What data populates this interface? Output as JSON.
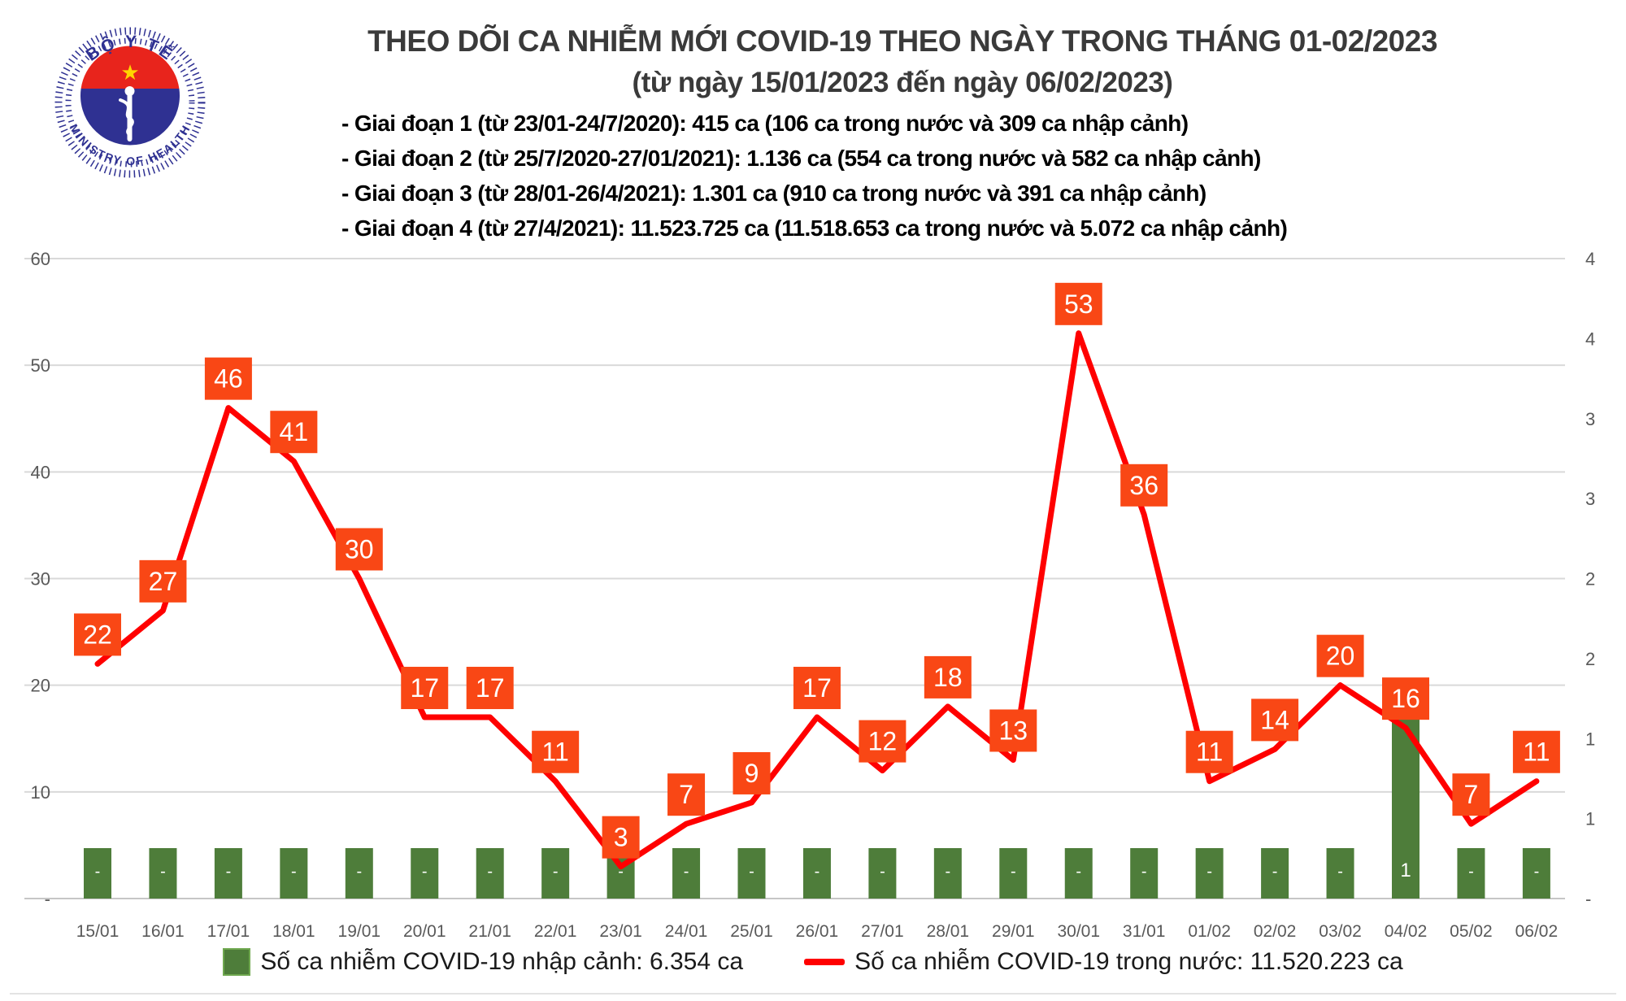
{
  "header": {
    "logo": {
      "top_text": "BỘ Y TẾ",
      "bottom_text": "MINISTRY OF HEALTH"
    },
    "title": "THEO DÕI CA NHIỄM MỚI COVID-19 THEO NGÀY TRONG THÁNG 01-02/2023",
    "subtitle": "(từ ngày 15/01/2023 đến ngày 06/02/2023)",
    "notes": [
      "- Giai đoạn 1 (từ 23/01-24/7/2020): 415 ca (106 ca trong nước và 309 ca nhập cảnh)",
      "- Giai đoạn 2 (từ 25/7/2020-27/01/2021): 1.136 ca (554 ca trong nước và 582 ca nhập cảnh)",
      "- Giai đoạn 3 (từ 28/01-26/4/2021): 1.301 ca (910 ca trong nước và 391 ca nhập cảnh)",
      "- Giai đoạn 4 (từ 27/4/2021): 11.523.725 ca (11.518.653 ca trong nước và 5.072 ca nhập cảnh)"
    ]
  },
  "chart_data": {
    "type": "line+bar",
    "categories": [
      "15/01",
      "16/01",
      "17/01",
      "18/01",
      "19/01",
      "20/01",
      "21/01",
      "22/01",
      "23/01",
      "24/01",
      "25/01",
      "26/01",
      "27/01",
      "28/01",
      "29/01",
      "30/01",
      "31/01",
      "01/02",
      "02/02",
      "03/02",
      "04/02",
      "05/02",
      "06/02"
    ],
    "series": [
      {
        "name": "Số ca nhiễm COVID-19 trong nước",
        "type": "line",
        "color": "#FF0000",
        "values": [
          22,
          27,
          46,
          41,
          30,
          17,
          17,
          11,
          3,
          7,
          9,
          17,
          12,
          18,
          13,
          53,
          36,
          11,
          14,
          20,
          16,
          7,
          11
        ]
      },
      {
        "name": "Số ca nhiễm COVID-19 nhập cảnh",
        "type": "bar",
        "color": "#4E7D3A",
        "labels": [
          "-",
          "-",
          "-",
          "-",
          "-",
          "-",
          "-",
          "-",
          "-",
          "-",
          "-",
          "-",
          "-",
          "-",
          "-",
          "-",
          "-",
          "-",
          "-",
          "-",
          "1",
          "-",
          "-"
        ],
        "values": [
          0,
          0,
          0,
          0,
          0,
          0,
          0,
          0,
          0,
          0,
          0,
          0,
          0,
          0,
          0,
          0,
          0,
          0,
          0,
          0,
          1,
          0,
          0
        ]
      }
    ],
    "left_axis": {
      "min": 0,
      "max": 60,
      "ticks": [
        "60",
        "50",
        "40",
        "30",
        "20",
        "10",
        "-"
      ]
    },
    "right_axis": {
      "ticks": [
        "4",
        "4",
        "3",
        "3",
        "2",
        "2",
        "1",
        "1",
        "-"
      ]
    },
    "label_box_color": "#F94715",
    "grid": true,
    "legend_position": "bottom"
  },
  "legend": [
    {
      "swatch": "bar",
      "color": "#4E7D3A",
      "label": "Số ca nhiễm COVID-19 nhập cảnh: 6.354 ca"
    },
    {
      "swatch": "line",
      "color": "#FF0000",
      "label": "Số ca nhiễm COVID-19 trong nước: 11.520.223 ca"
    }
  ]
}
